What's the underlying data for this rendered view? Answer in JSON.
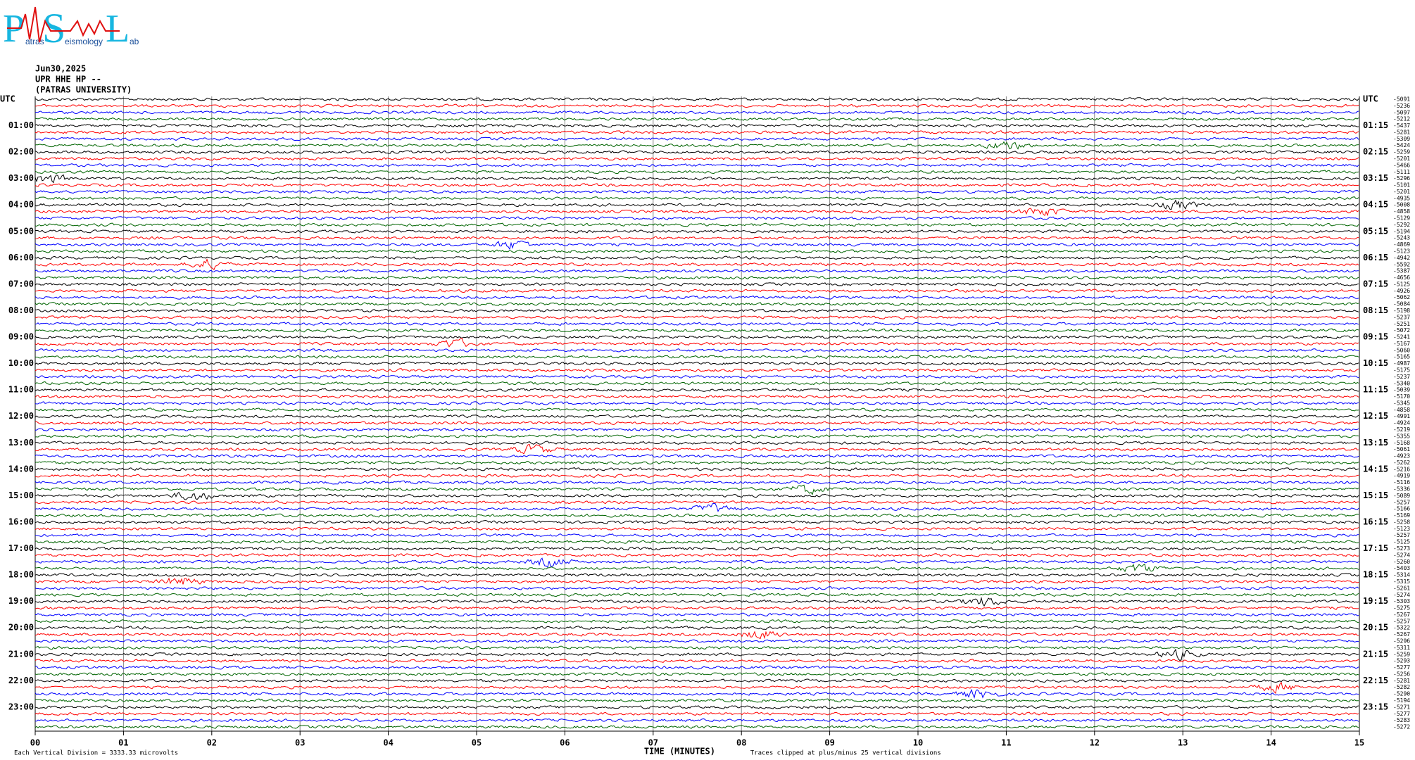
{
  "chart_data": {
    "type": "helicorder",
    "logo": {
      "letters": [
        "P",
        "S",
        "L"
      ],
      "words": [
        "atras",
        "eismology",
        "ab"
      ]
    },
    "date": "Jun30,2025",
    "station": "UPR HHE HP --",
    "institution": "(PATRAS UNIVERSITY)",
    "left_labels": [
      "UTC",
      "01:00",
      "02:00",
      "03:00",
      "04:00",
      "05:00",
      "06:00",
      "07:00",
      "08:00",
      "09:00",
      "10:00",
      "11:00",
      "12:00",
      "13:00",
      "14:00",
      "15:00",
      "16:00",
      "17:00",
      "18:00",
      "19:00",
      "20:00",
      "21:00",
      "22:00",
      "23:00"
    ],
    "right_labels": [
      "UTC",
      "01:15",
      "02:15",
      "03:15",
      "04:15",
      "05:15",
      "06:15",
      "07:15",
      "08:15",
      "09:15",
      "10:15",
      "11:15",
      "12:15",
      "13:15",
      "14:15",
      "15:15",
      "16:15",
      "17:15",
      "18:15",
      "19:15",
      "20:15",
      "21:15",
      "22:15",
      "23:15"
    ],
    "trace_values": [
      -5091,
      -5236,
      -5097,
      -5212,
      -5437,
      -5281,
      -5309,
      -5424,
      -5259,
      -5201,
      -5466,
      -5111,
      -5296,
      -5101,
      -5201,
      -4935,
      -5008,
      -4858,
      -5129,
      -5292,
      -5194,
      -5243,
      -4869,
      -5123,
      -4942,
      -5592,
      -5387,
      -4656,
      -5125,
      -4926,
      -5062,
      -5084,
      -5198,
      -5237,
      -5251,
      -5072,
      -5241,
      -5167,
      -5060,
      -5165,
      -4987,
      -5175,
      -5237,
      -5340,
      -5039,
      -5170,
      -5345,
      -4858,
      -4991,
      -4924,
      -5219,
      -5355,
      -5168,
      -5061,
      -4923,
      -5262,
      -5216,
      -4919,
      -5116,
      -5336,
      -5089,
      -5257,
      -5166,
      -5169,
      -5258,
      -5123,
      -5257,
      -5125,
      -5273,
      -5274,
      -5260,
      -5403,
      -5314,
      -5315,
      -5261,
      -5274,
      -5303,
      -5275,
      -5267,
      -5257,
      -5322,
      -5267,
      -5296,
      -5311,
      -5259,
      -5293,
      -5277,
      -5256,
      -5281,
      -5282,
      -5290,
      -5194,
      -5271,
      -5277,
      -5283,
      -5272
    ],
    "trace_colors": [
      "#000000",
      "#ff0000",
      "#0000ff",
      "#006400"
    ],
    "xlim": [
      0,
      15
    ],
    "xticks": [
      {
        "value": 0,
        "label": "00"
      },
      {
        "value": 1,
        "label": "01"
      },
      {
        "value": 2,
        "label": "02"
      },
      {
        "value": 3,
        "label": "03"
      },
      {
        "value": 4,
        "label": "04"
      },
      {
        "value": 5,
        "label": "05"
      },
      {
        "value": 6,
        "label": "06"
      },
      {
        "value": 7,
        "label": "07"
      },
      {
        "value": 8,
        "label": "08"
      },
      {
        "value": 9,
        "label": "09"
      },
      {
        "value": 10,
        "label": "10"
      },
      {
        "value": 11,
        "label": "11"
      },
      {
        "value": 12,
        "label": "12"
      },
      {
        "value": 13,
        "label": "13"
      },
      {
        "value": 14,
        "label": "14"
      },
      15
    ],
    "xlabel": "TIME (MINUTES)",
    "scale_note": "Each Vertical Division = 3333.33 microvolts",
    "clip_note": "Traces clipped at plus/minus 25 vertical divisions",
    "grid": true
  }
}
